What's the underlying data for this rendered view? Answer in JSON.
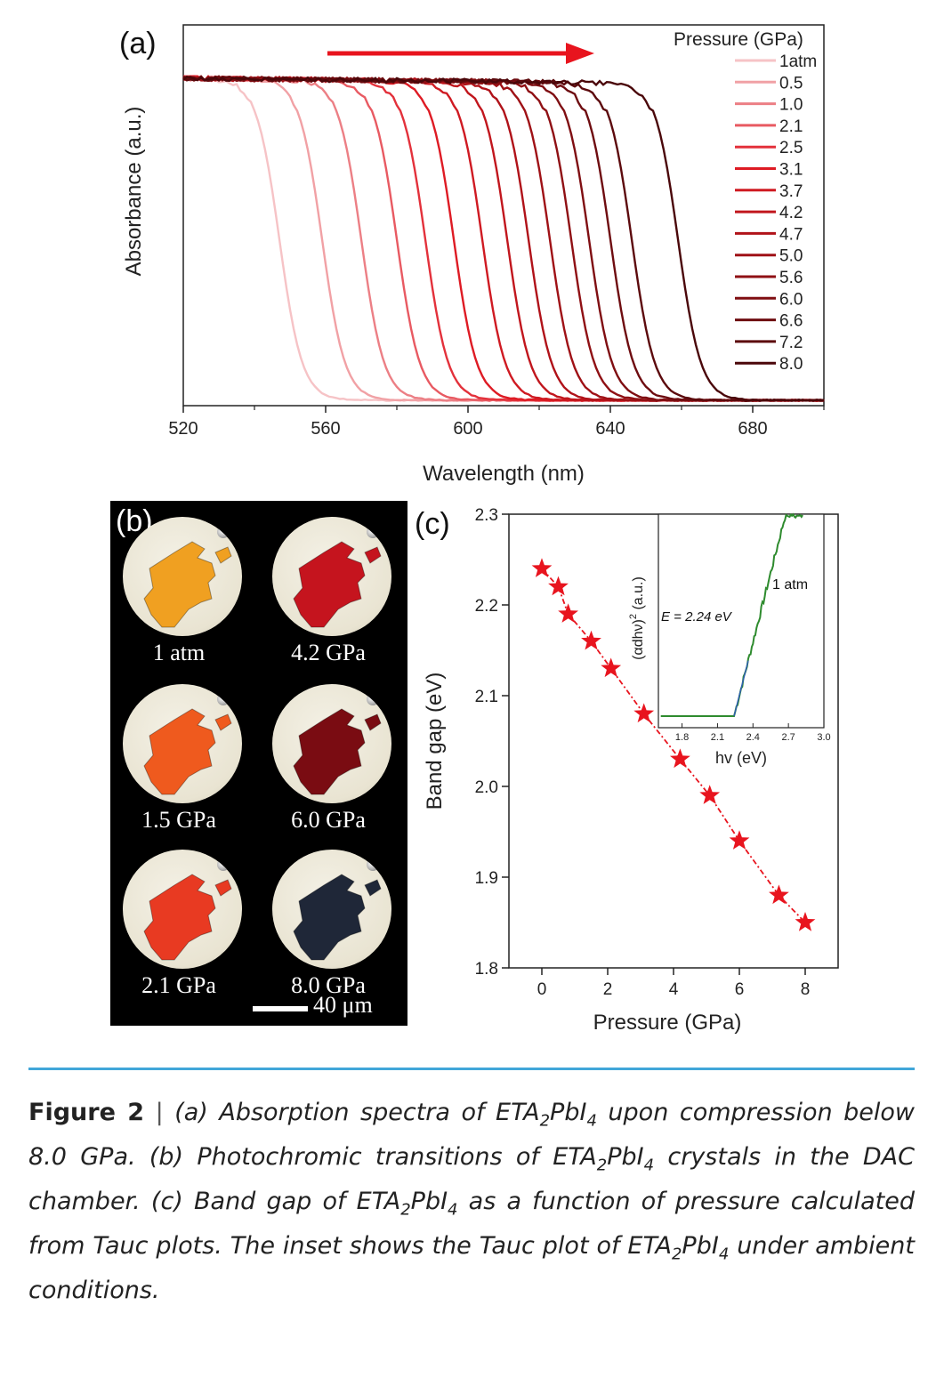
{
  "chart_data": [
    {
      "panel": "(a)",
      "type": "line",
      "xlabel": "Wavelength (nm)",
      "ylabel": "Absorbance (a.u.)",
      "xlim": [
        520,
        700
      ],
      "xticks": [
        "520",
        "560",
        "600",
        "640",
        "680"
      ],
      "legend_title": "Pressure (GPa)",
      "legend_position": "right",
      "series_colors": [
        "#f6c3c6",
        "#f1a1a5",
        "#ec7f85",
        "#e85a62",
        "#e3313b",
        "#de1b24",
        "#cf1a22",
        "#c1161d",
        "#b01219",
        "#9f1116",
        "#8f1014",
        "#7f0e12",
        "#6e0c10",
        "#5c0a0d",
        "#4a070a"
      ],
      "series": [
        {
          "name": "1atm",
          "edge_nm": 547
        },
        {
          "name": "0.5",
          "edge_nm": 559
        },
        {
          "name": "1.0",
          "edge_nm": 570
        },
        {
          "name": "2.1",
          "edge_nm": 580
        },
        {
          "name": "2.5",
          "edge_nm": 588
        },
        {
          "name": "3.1",
          "edge_nm": 596
        },
        {
          "name": "3.7",
          "edge_nm": 604
        },
        {
          "name": "4.2",
          "edge_nm": 611
        },
        {
          "name": "4.7",
          "edge_nm": 617
        },
        {
          "name": "5.0",
          "edge_nm": 623
        },
        {
          "name": "5.6",
          "edge_nm": 629
        },
        {
          "name": "6.0",
          "edge_nm": 634
        },
        {
          "name": "6.6",
          "edge_nm": 640
        },
        {
          "name": "7.2",
          "edge_nm": 646
        },
        {
          "name": "8.0",
          "edge_nm": 659
        }
      ],
      "arrow": "increasing pressure shifts edge to longer wavelength"
    },
    {
      "panel": "(c)",
      "type": "scatter",
      "xlabel": "Pressure (GPa)",
      "ylabel": "Band gap (eV)",
      "xlim": [
        -1,
        9
      ],
      "ylim": [
        1.8,
        2.3
      ],
      "xticks": [
        "0",
        "2",
        "4",
        "6",
        "8"
      ],
      "yticks": [
        "1.8",
        "1.9",
        "2.0",
        "2.1",
        "2.2",
        "2.3"
      ],
      "marker_color": "#e8141e",
      "x": [
        0,
        0.5,
        0.8,
        1.5,
        2.1,
        3.1,
        4.2,
        5.1,
        6.0,
        7.2,
        8.0
      ],
      "y": [
        2.24,
        2.22,
        2.19,
        2.16,
        2.13,
        2.08,
        2.03,
        1.99,
        1.94,
        1.88,
        1.85
      ],
      "inset": {
        "type": "line",
        "xlabel": "hv (eV)",
        "ylabel": "(αdhν)",
        "ylabel_sup": "2",
        "ylabel_unit": " (a.u.)",
        "xlim": [
          1.6,
          3.0
        ],
        "xticks": [
          "1.8",
          "2.1",
          "2.4",
          "2.7",
          "3.0"
        ],
        "annotation": "E = 2.24 eV",
        "label": "1 atm",
        "line_color": "#2e8b2e",
        "fit_color": "#2f5fb0",
        "onset_ev": 2.24
      }
    }
  ],
  "panel_b": {
    "letter": "(b)",
    "cells": [
      {
        "label": "1 atm",
        "color": "#f0a021"
      },
      {
        "label": "4.2 GPa",
        "color": "#c5141e"
      },
      {
        "label": "1.5 GPa",
        "color": "#ef5a1e"
      },
      {
        "label": "6.0 GPa",
        "color": "#7a0c12"
      },
      {
        "label": "2.1 GPa",
        "color": "#e83a22"
      },
      {
        "label": "8.0 GPa",
        "color": "#1f2738"
      }
    ],
    "scale_label": "40 μm"
  },
  "caption": {
    "label": "Figure 2",
    "separator": " | ",
    "parts": [
      "(a) Absorption spectra of ETA",
      "2",
      "PbI",
      "4",
      " upon compression below 8.0 GPa. (b) Photochromic transitions of ETA",
      "2",
      "PbI",
      "4",
      " crystals in the DAC chamber. (c) Band gap of ETA",
      "2",
      "PbI",
      "4",
      " as a function of pressure calculated from Tauc plots. The inset shows the Tauc plot of ETA",
      "2",
      "PbI",
      "4",
      " under ambient conditions."
    ]
  }
}
